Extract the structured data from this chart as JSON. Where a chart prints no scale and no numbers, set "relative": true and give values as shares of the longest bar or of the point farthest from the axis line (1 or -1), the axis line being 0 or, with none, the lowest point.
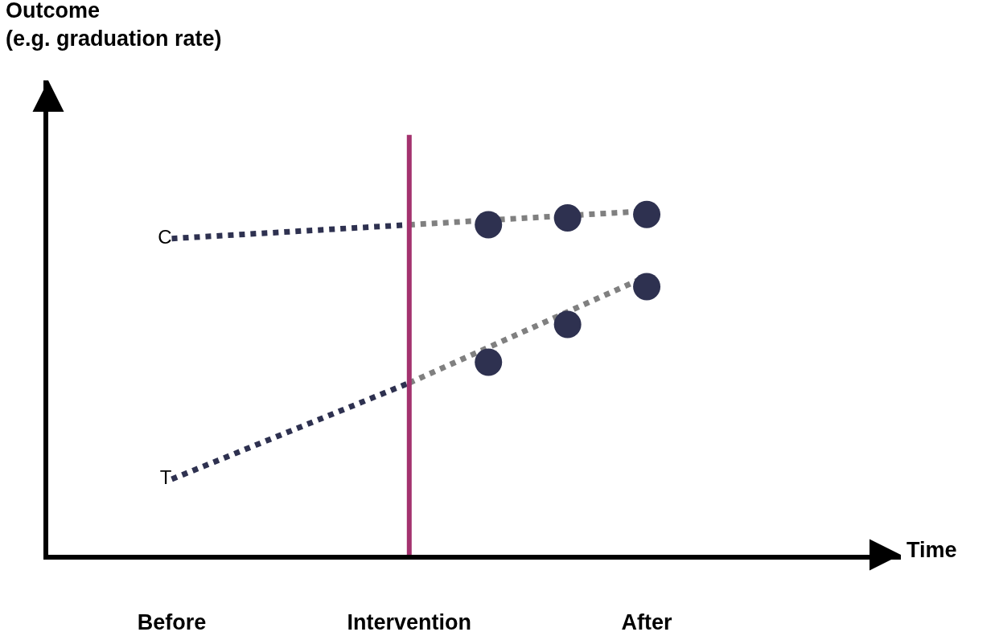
{
  "chart_data": {
    "type": "line",
    "relative": true,
    "annotations": [
      "Outcome\n(e.g. graduation rate)",
      "Time"
    ],
    "categories": [
      "Before",
      null,
      null,
      "Intervention",
      null,
      null,
      "After"
    ],
    "series": [
      {
        "name": "C",
        "color": "#2e3150",
        "values": [
          0.92,
          null,
          null,
          0.96,
          null,
          null,
          null
        ],
        "line_style": "dotted",
        "marker": "none"
      },
      {
        "color": "#808080",
        "values": [
          null,
          null,
          null,
          0.96,
          null,
          null,
          1.0
        ],
        "line_style": "dotted",
        "marker": "none"
      },
      {
        "name": "T",
        "color": "#2e3150",
        "values": [
          0.22,
          null,
          null,
          0.5,
          null,
          null,
          null
        ],
        "line_style": "dotted",
        "marker": "none"
      },
      {
        "color": "#808080",
        "values": [
          null,
          null,
          null,
          0.5,
          null,
          null,
          0.81
        ],
        "line_style": "dotted",
        "marker": "none"
      },
      {
        "type": "scatter",
        "color": "#2e3150",
        "values": [
          null,
          null,
          null,
          null,
          0.96,
          0.98,
          0.99
        ],
        "marker": "circle"
      },
      {
        "type": "scatter",
        "color": "#2e3150",
        "values": [
          null,
          null,
          null,
          null,
          0.56,
          0.67,
          0.78
        ],
        "marker": "circle"
      }
    ],
    "ref_lines": [
      {
        "axis": "x",
        "value": "Intervention",
        "color": "#a3326e"
      }
    ],
    "grid": false,
    "legend": false
  }
}
